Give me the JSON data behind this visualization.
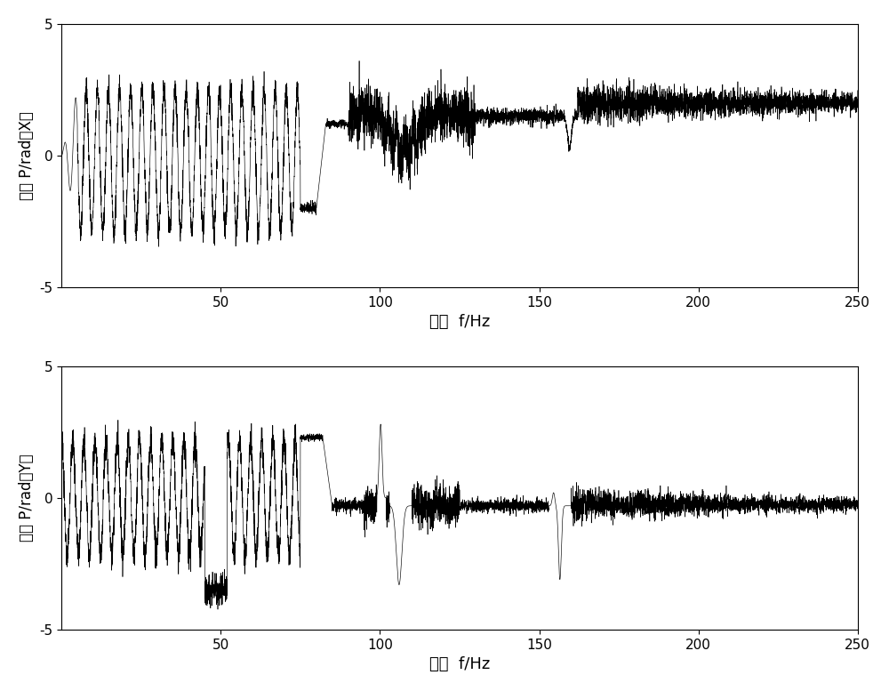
{
  "xlim": [
    0,
    250
  ],
  "ylim": [
    -5,
    5
  ],
  "yticks": [
    -5,
    0,
    5
  ],
  "xticks": [
    50,
    100,
    150,
    200,
    250
  ],
  "xlabel": "频率  f/Hz",
  "ylabel_x": "相位 P/rad（X）",
  "ylabel_y": "相位 P/rad（Y）",
  "line_color": "#000000",
  "background_color": "#ffffff",
  "fig_width": 10.0,
  "fig_height": 7.77
}
